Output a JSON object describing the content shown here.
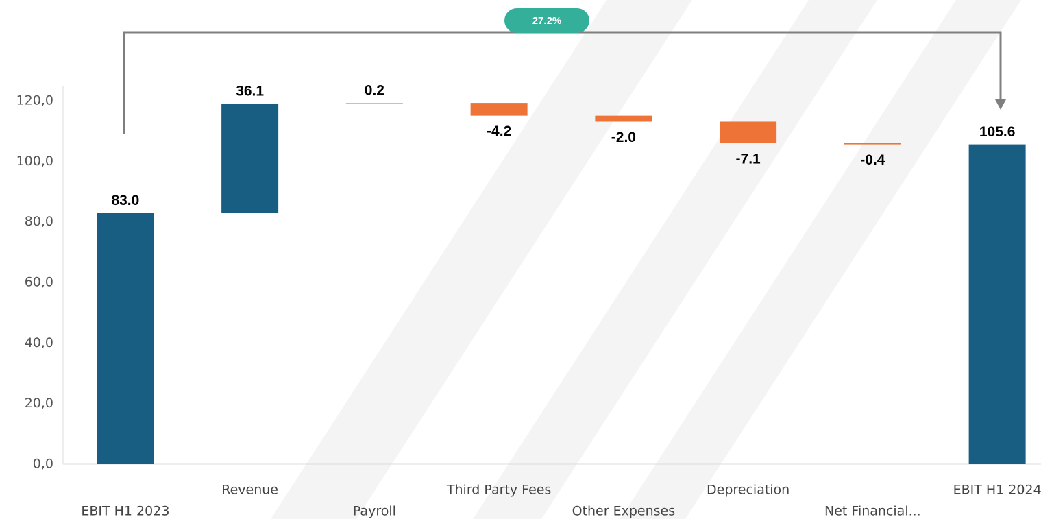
{
  "chart_data": {
    "type": "waterfall",
    "categories": [
      "EBIT H1 2023",
      "Revenue",
      "Payroll",
      "Third Party Fees",
      "Other Expenses",
      "Depreciation",
      "Net Financial...",
      "EBIT H1 2024"
    ],
    "values": [
      83.0,
      36.1,
      0.2,
      -4.2,
      -2.0,
      -7.1,
      -0.4,
      105.6
    ],
    "value_labels": [
      "83.0",
      "36.1",
      "0.2",
      "-4.2",
      "-2.0",
      "-7.1",
      "-0.4",
      "105.6"
    ],
    "measure": [
      "absolute",
      "relative",
      "relative",
      "relative",
      "relative",
      "relative",
      "relative",
      "total"
    ],
    "colors": {
      "total": "#175e82",
      "increase": "#175e82",
      "decrease": "#ed7436"
    },
    "annotation": "27.2%",
    "ylim": [
      0,
      120
    ],
    "yticks": [
      {
        "value": 0,
        "label": "0,0"
      },
      {
        "value": 20,
        "label": "20,0"
      },
      {
        "value": 40,
        "label": "40,0"
      },
      {
        "value": 60,
        "label": "60,0"
      },
      {
        "value": 80,
        "label": "80,0"
      },
      {
        "value": 100,
        "label": "100,0"
      },
      {
        "value": 120,
        "label": "120,0"
      }
    ],
    "grid": false
  }
}
